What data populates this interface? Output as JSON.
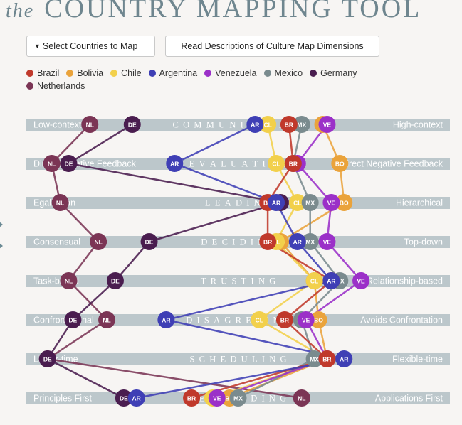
{
  "header": {
    "title_prefix": "the",
    "title_main": "COUNTRY MAPPING TOOL"
  },
  "buttons": {
    "select_label": "Select Countries to Map",
    "read_label": "Read Descriptions of Culture Map Dimensions"
  },
  "icons": {
    "select_caret": "caret-down-icon",
    "side_arrows": "chevron-right-icon"
  },
  "colors": {
    "bar": "#bcc7cb",
    "dimension_text": "#ffffff",
    "label_text": "#ffffff"
  },
  "legend": [
    {
      "name": "Brazil",
      "color": "#c0392b"
    },
    {
      "name": "Bolivia",
      "color": "#eaa33b"
    },
    {
      "name": "Chile",
      "color": "#f2d04b"
    },
    {
      "name": "Argentina",
      "color": "#3f3fb5"
    },
    {
      "name": "Venezuela",
      "color": "#9b30c8"
    },
    {
      "name": "Mexico",
      "color": "#7a8b8e"
    },
    {
      "name": "Germany",
      "color": "#4a1d4f"
    },
    {
      "name": "Netherlands",
      "color": "#7b3555"
    }
  ],
  "chart_data": {
    "type": "scatter",
    "x_range": [
      0,
      100
    ],
    "dimensions": [
      {
        "name": "COMMUNICATING",
        "left": "Low-context",
        "right": "High-context"
      },
      {
        "name": "EVALUATING",
        "left": "Direct Negative Feedback",
        "right": "Indirect Negative Feedback"
      },
      {
        "name": "LEADING",
        "left": "Egalitarian",
        "right": "Hierarchical"
      },
      {
        "name": "DECIDING",
        "left": "Consensual",
        "right": "Top-down"
      },
      {
        "name": "TRUSTING",
        "left": "Task-based",
        "right": "Relationship-based"
      },
      {
        "name": "DISAGREEING",
        "left": "Confrontational",
        "right": "Avoids Confrontation"
      },
      {
        "name": "SCHEDULING",
        "left": "Linear-time",
        "right": "Flexible-time"
      },
      {
        "name": "PERSUADING",
        "left": "Principles First",
        "right": "Applications First"
      }
    ],
    "series": [
      {
        "name": "Netherlands",
        "abbr": "NL",
        "color": "#7b3555",
        "values": [
          15,
          6,
          8,
          17,
          10,
          19,
          5,
          65
        ]
      },
      {
        "name": "Germany",
        "abbr": "DE",
        "color": "#4a1d4f",
        "values": [
          25,
          10,
          60,
          29,
          21,
          11,
          5,
          23
        ]
      },
      {
        "name": "Bolivia",
        "abbr": "BO",
        "color": "#eaa33b",
        "values": [
          70,
          74,
          75,
          60,
          68,
          69,
          71,
          48
        ]
      },
      {
        "name": "Chile",
        "abbr": "CL",
        "color": "#f2d04b",
        "values": [
          57,
          59,
          64,
          59,
          68,
          55,
          71,
          44
        ]
      },
      {
        "name": "Mexico",
        "abbr": "MX",
        "color": "#7a8b8e",
        "values": [
          65,
          63,
          67,
          67,
          74,
          65,
          68,
          50
        ]
      },
      {
        "name": "Venezuela",
        "abbr": "VE",
        "color": "#9b30c8",
        "values": [
          71,
          64,
          72,
          71,
          79,
          66,
          71,
          45
        ]
      },
      {
        "name": "Brazil",
        "abbr": "BR",
        "color": "#c0392b",
        "values": [
          62,
          63,
          57,
          57,
          72,
          61,
          71,
          39
        ]
      },
      {
        "name": "Argentina",
        "abbr": "AR",
        "color": "#3f3fb5",
        "values": [
          54,
          35,
          59,
          64,
          72,
          33,
          75,
          26
        ]
      }
    ]
  }
}
